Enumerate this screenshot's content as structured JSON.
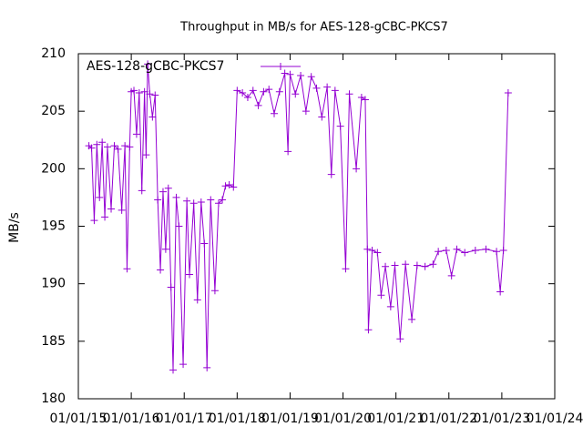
{
  "chart_data": {
    "type": "line",
    "title": "Throughput in MB/s for AES-128-gCBC-PKCS7",
    "y_label": "MB/s",
    "x": [
      2015.2,
      2015.25,
      2015.3,
      2015.35,
      2015.4,
      2015.45,
      2015.5,
      2015.55,
      2015.62,
      2015.68,
      2015.75,
      2015.82,
      2015.88,
      2015.92,
      2015.97,
      2016.0,
      2016.05,
      2016.1,
      2016.15,
      2016.2,
      2016.25,
      2016.28,
      2016.31,
      2016.35,
      2016.4,
      2016.45,
      2016.5,
      2016.55,
      2016.6,
      2016.65,
      2016.7,
      2016.75,
      2016.79,
      2016.85,
      2016.9,
      2016.98,
      2017.05,
      2017.1,
      2017.18,
      2017.25,
      2017.32,
      2017.38,
      2017.43,
      2017.5,
      2017.58,
      2017.65,
      2017.72,
      2017.78,
      2017.85,
      2017.93,
      2018.0,
      2018.1,
      2018.2,
      2018.3,
      2018.4,
      2018.5,
      2018.6,
      2018.7,
      2018.8,
      2018.9,
      2018.96,
      2019.0,
      2019.1,
      2019.2,
      2019.3,
      2019.4,
      2019.5,
      2019.6,
      2019.7,
      2019.78,
      2019.85,
      2019.95,
      2020.05,
      2020.12,
      2020.25,
      2020.35,
      2020.42,
      2020.46,
      2020.48,
      2020.55,
      2020.65,
      2020.72,
      2020.8,
      2020.9,
      2020.98,
      2021.08,
      2021.18,
      2021.3,
      2021.4,
      2021.55,
      2021.7,
      2021.8,
      2021.95,
      2022.05,
      2022.15,
      2022.3,
      2022.5,
      2022.7,
      2022.9,
      2022.97,
      2023.03,
      2023.12
    ],
    "series": [
      {
        "name": "AES-128-gCBC-PKCS7",
        "color": "#9400d3",
        "values": [
          202.0,
          201.8,
          195.5,
          202.1,
          197.5,
          202.3,
          195.8,
          201.9,
          196.5,
          202.0,
          201.7,
          196.4,
          202.0,
          191.3,
          201.9,
          206.7,
          206.8,
          203.0,
          206.6,
          198.1,
          206.7,
          201.2,
          209.1,
          206.5,
          204.5,
          206.4,
          197.3,
          191.2,
          198.0,
          193.0,
          198.3,
          189.7,
          182.5,
          197.5,
          195.0,
          183.0,
          197.2,
          190.8,
          197.0,
          188.6,
          197.1,
          193.5,
          182.7,
          197.3,
          189.4,
          197.0,
          197.3,
          198.5,
          198.6,
          198.4,
          206.8,
          206.6,
          206.2,
          206.8,
          205.5,
          206.7,
          206.9,
          204.8,
          206.7,
          208.3,
          201.5,
          208.2,
          206.5,
          208.1,
          205.0,
          208.0,
          207.0,
          204.5,
          207.1,
          199.5,
          206.8,
          203.7,
          191.3,
          206.5,
          200.0,
          206.2,
          206.0,
          193.0,
          186.0,
          192.9,
          192.7,
          189.0,
          191.5,
          188.0,
          191.6,
          185.2,
          191.7,
          186.9,
          191.6,
          191.5,
          191.7,
          192.8,
          192.9,
          190.7,
          193.0,
          192.7,
          192.9,
          193.0,
          192.8,
          189.3,
          192.9,
          206.6
        ]
      }
    ],
    "xlim": [
      2015,
      2024
    ],
    "xticks": [
      {
        "value": 2015,
        "label": "01/01/15"
      },
      {
        "value": 2016,
        "label": "01/01/16"
      },
      {
        "value": 2017,
        "label": "01/01/17"
      },
      {
        "value": 2018,
        "label": "01/01/18"
      },
      {
        "value": 2019,
        "label": "01/01/19"
      },
      {
        "value": 2020,
        "label": "01/01/20"
      },
      {
        "value": 2021,
        "label": "01/01/21"
      },
      {
        "value": 2022,
        "label": "01/01/22"
      },
      {
        "value": 2023,
        "label": "01/01/23"
      },
      {
        "value": 2024,
        "label": "01/01/24"
      }
    ],
    "ylim": [
      180,
      210
    ],
    "yticks": [
      180,
      185,
      190,
      195,
      200,
      205,
      210
    ],
    "legend": "top-left"
  }
}
